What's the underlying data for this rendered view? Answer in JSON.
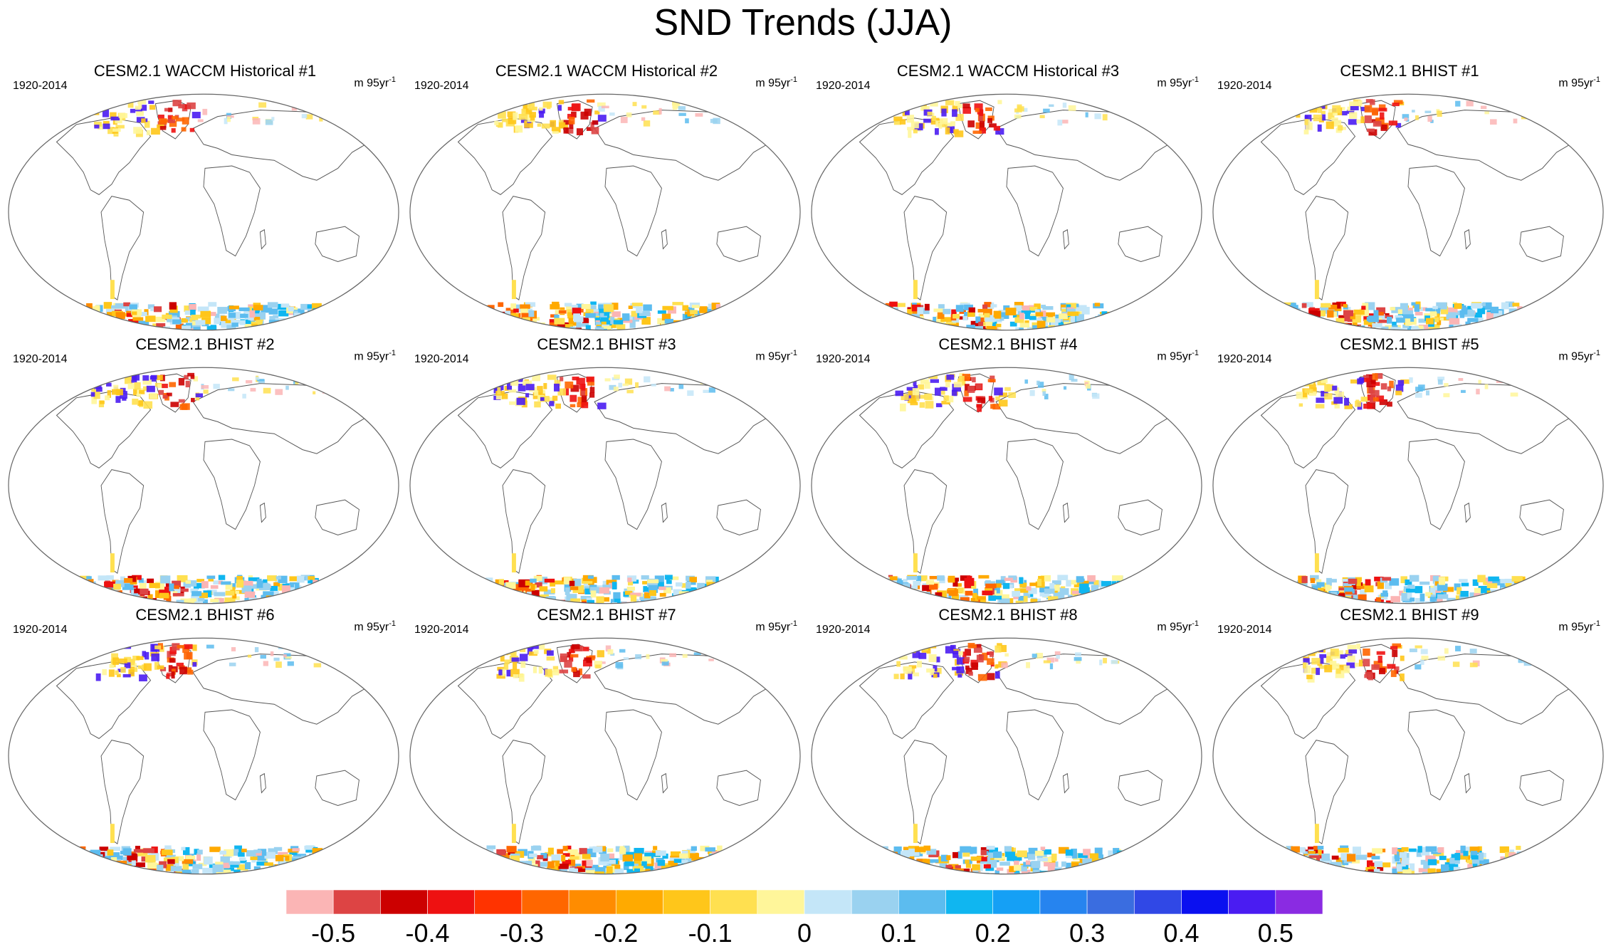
{
  "title": "SND Trends (JJA)",
  "panels": [
    {
      "title": "CESM2.1 WACCM Historical #1",
      "period": "1920-2014",
      "units": "m 95yr",
      "units_sup": "-1",
      "variant": 0
    },
    {
      "title": "CESM2.1 WACCM Historical #2",
      "period": "1920-2014",
      "units": "m 95yr",
      "units_sup": "-1",
      "variant": 1
    },
    {
      "title": "CESM2.1 WACCM Historical #3",
      "period": "1920-2014",
      "units": "m 95yr",
      "units_sup": "-1",
      "variant": 2
    },
    {
      "title": "CESM2.1 BHIST #1",
      "period": "1920-2014",
      "units": "m 95yr",
      "units_sup": "-1",
      "variant": 3
    },
    {
      "title": "CESM2.1 BHIST #2",
      "period": "1920-2014",
      "units": "m 95yr",
      "units_sup": "-1",
      "variant": 4
    },
    {
      "title": "CESM2.1 BHIST #3",
      "period": "1920-2014",
      "units": "m 95yr",
      "units_sup": "-1",
      "variant": 5
    },
    {
      "title": "CESM2.1 BHIST #4",
      "period": "1920-2014",
      "units": "m 95yr",
      "units_sup": "-1",
      "variant": 6
    },
    {
      "title": "CESM2.1 BHIST #5",
      "period": "1920-2014",
      "units": "m 95yr",
      "units_sup": "-1",
      "variant": 7
    },
    {
      "title": "CESM2.1 BHIST #6",
      "period": "1920-2014",
      "units": "m 95yr",
      "units_sup": "-1",
      "variant": 8
    },
    {
      "title": "CESM2.1 BHIST #7",
      "period": "1920-2014",
      "units": "m 95yr",
      "units_sup": "-1",
      "variant": 9
    },
    {
      "title": "CESM2.1 BHIST #8",
      "period": "1920-2014",
      "units": "m 95yr",
      "units_sup": "-1",
      "variant": 10
    },
    {
      "title": "CESM2.1 BHIST #9",
      "period": "1920-2014",
      "units": "m 95yr",
      "units_sup": "-1",
      "variant": 11
    }
  ],
  "colorbar": {
    "colors": [
      "#fbb5b5",
      "#dd4444",
      "#cc0000",
      "#ee1111",
      "#ff3300",
      "#ff6600",
      "#ff8c00",
      "#ffaa00",
      "#ffc61a",
      "#ffe050",
      "#fff69a",
      "#c4e6f8",
      "#9ad2f0",
      "#5cbcef",
      "#10b6f0",
      "#15a0f5",
      "#2684ef",
      "#3a6de0",
      "#3048e6",
      "#0a10f0",
      "#4a1cf2",
      "#8a2be2"
    ],
    "labels": [
      "-0.5",
      "-0.4",
      "-0.3",
      "-0.2",
      "-0.1",
      "0",
      "0.1",
      "0.2",
      "0.3",
      "0.4",
      "0.5"
    ]
  },
  "colors": {
    "land_outline": "#555555",
    "frame": "#666666"
  }
}
